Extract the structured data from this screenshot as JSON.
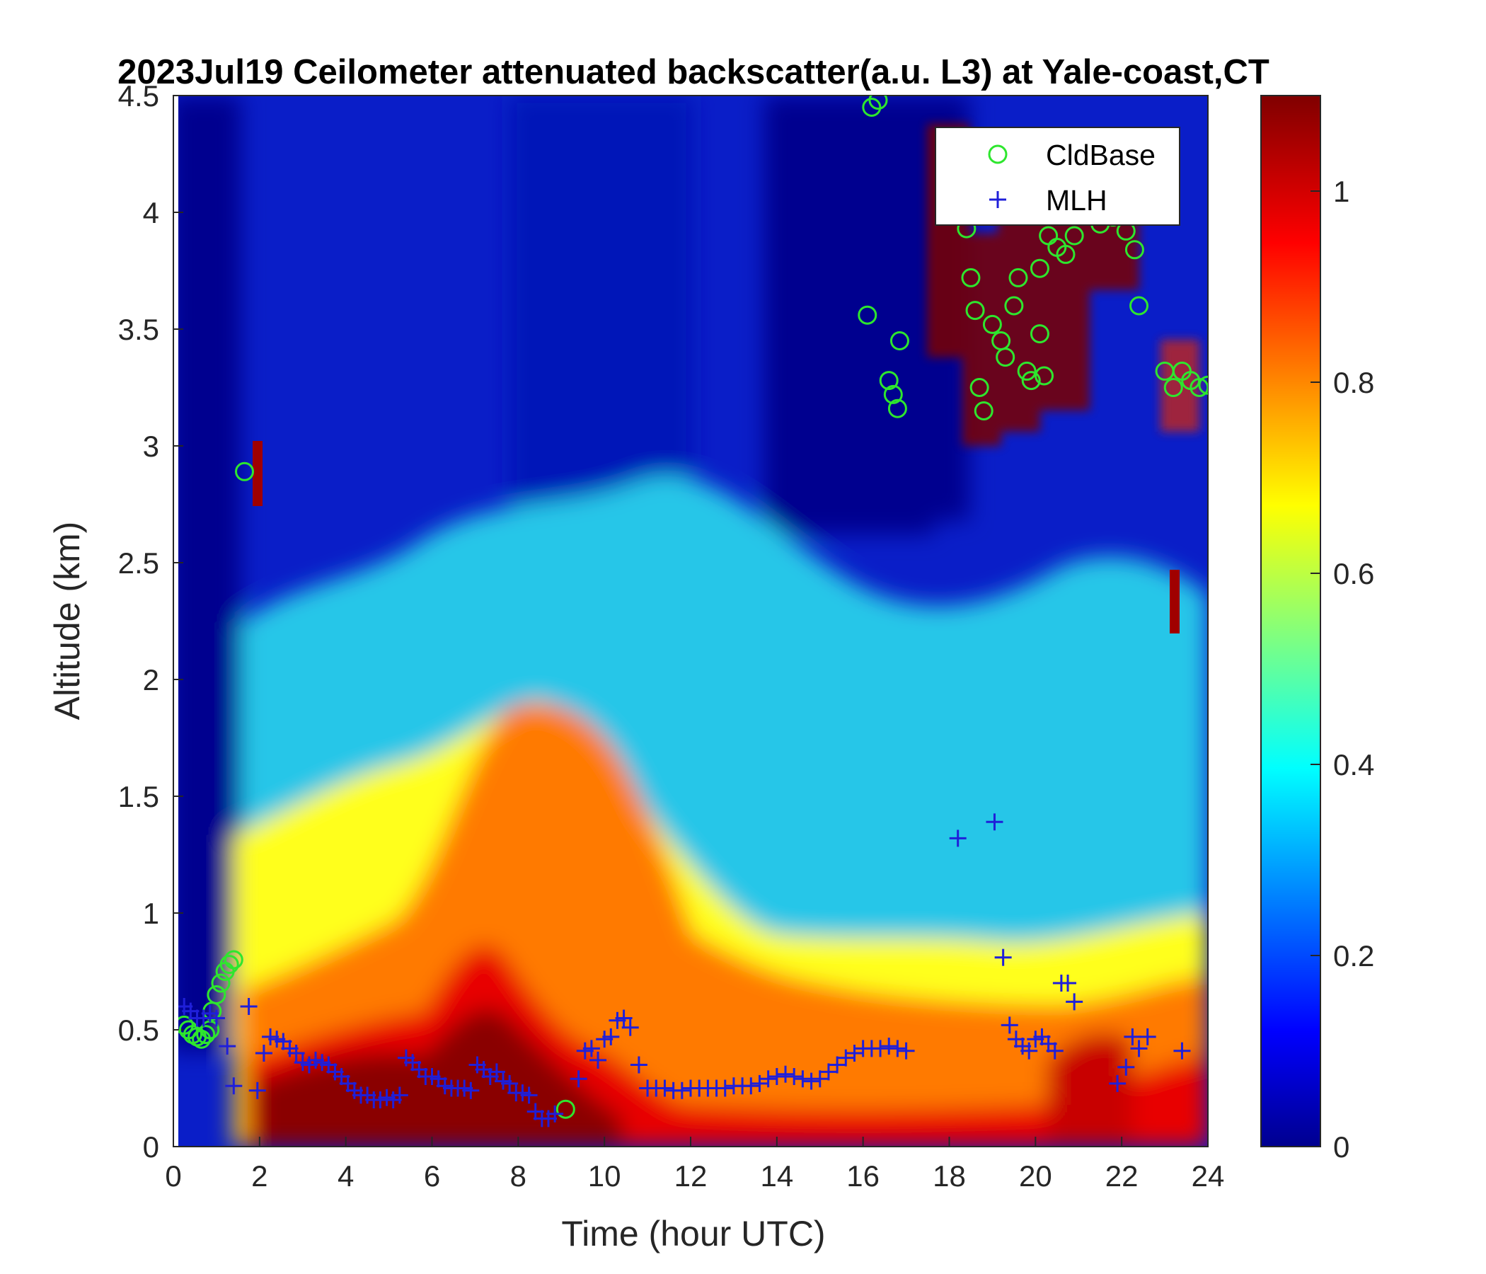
{
  "chart_data": {
    "type": "heatmap",
    "title": "2023Jul19 Ceilometer attenuated backscatter(a.u. L3) at Yale-coast,CT",
    "xlabel": "Time (hour UTC)",
    "ylabel": "Altitude (km)",
    "xlim": [
      0,
      24
    ],
    "ylim": [
      0,
      4.5
    ],
    "x_ticks": [
      "0",
      "2",
      "4",
      "6",
      "8",
      "10",
      "12",
      "14",
      "16",
      "18",
      "20",
      "22",
      "24"
    ],
    "y_ticks": [
      "0",
      "0.5",
      "1",
      "1.5",
      "2",
      "2.5",
      "3",
      "3.5",
      "4",
      "4.5"
    ],
    "colorbar": {
      "range": [
        0,
        1.1
      ],
      "ticks": [
        "0",
        "0.2",
        "0.4",
        "0.6",
        "0.8",
        "1"
      ],
      "colormap": "jet"
    },
    "legend": {
      "position": "top-right",
      "entries": [
        {
          "label": "CldBase",
          "marker": "circle",
          "color": "#2ee62e"
        },
        {
          "label": "MLH",
          "marker": "plus",
          "color": "#1f1fd9"
        }
      ]
    },
    "series": [
      {
        "name": "CldBase",
        "points": [
          [
            0.25,
            0.52
          ],
          [
            0.35,
            0.5
          ],
          [
            0.45,
            0.48
          ],
          [
            0.55,
            0.47
          ],
          [
            0.65,
            0.46
          ],
          [
            0.75,
            0.48
          ],
          [
            0.85,
            0.5
          ],
          [
            0.9,
            0.58
          ],
          [
            1.0,
            0.65
          ],
          [
            1.1,
            0.7
          ],
          [
            1.2,
            0.75
          ],
          [
            1.3,
            0.78
          ],
          [
            1.4,
            0.8
          ],
          [
            1.65,
            2.89
          ],
          [
            9.1,
            0.16
          ],
          [
            16.2,
            4.45
          ],
          [
            16.35,
            4.48
          ],
          [
            16.1,
            3.56
          ],
          [
            16.6,
            3.28
          ],
          [
            16.7,
            3.22
          ],
          [
            16.8,
            3.16
          ],
          [
            16.85,
            3.45
          ],
          [
            18.4,
            3.93
          ],
          [
            18.5,
            3.72
          ],
          [
            18.6,
            3.58
          ],
          [
            18.7,
            3.25
          ],
          [
            18.8,
            3.15
          ],
          [
            19.0,
            3.52
          ],
          [
            19.2,
            3.45
          ],
          [
            19.3,
            3.38
          ],
          [
            19.5,
            3.6
          ],
          [
            19.6,
            3.72
          ],
          [
            19.8,
            3.32
          ],
          [
            19.9,
            3.28
          ],
          [
            20.1,
            3.48
          ],
          [
            20.2,
            3.3
          ],
          [
            20.1,
            3.76
          ],
          [
            20.3,
            3.9
          ],
          [
            20.5,
            3.85
          ],
          [
            20.7,
            3.82
          ],
          [
            20.9,
            3.9
          ],
          [
            21.5,
            3.95
          ],
          [
            21.8,
            3.98
          ],
          [
            22.1,
            3.92
          ],
          [
            22.3,
            3.84
          ],
          [
            22.4,
            3.6
          ],
          [
            23.0,
            3.32
          ],
          [
            23.2,
            3.25
          ],
          [
            23.4,
            3.32
          ],
          [
            23.6,
            3.28
          ],
          [
            23.8,
            3.25
          ],
          [
            24.0,
            3.26
          ]
        ]
      },
      {
        "name": "MLH",
        "points": [
          [
            0.25,
            0.6
          ],
          [
            0.4,
            0.58
          ],
          [
            0.55,
            0.55
          ],
          [
            0.7,
            0.55
          ],
          [
            0.85,
            0.57
          ],
          [
            1.0,
            0.55
          ],
          [
            1.25,
            0.43
          ],
          [
            1.4,
            0.26
          ],
          [
            1.75,
            0.6
          ],
          [
            1.95,
            0.24
          ],
          [
            2.1,
            0.4
          ],
          [
            2.25,
            0.47
          ],
          [
            2.4,
            0.46
          ],
          [
            2.55,
            0.45
          ],
          [
            2.7,
            0.42
          ],
          [
            2.85,
            0.4
          ],
          [
            3.0,
            0.36
          ],
          [
            3.15,
            0.35
          ],
          [
            3.3,
            0.37
          ],
          [
            3.45,
            0.36
          ],
          [
            3.6,
            0.35
          ],
          [
            3.75,
            0.32
          ],
          [
            3.9,
            0.3
          ],
          [
            4.05,
            0.27
          ],
          [
            4.2,
            0.24
          ],
          [
            4.35,
            0.22
          ],
          [
            4.5,
            0.22
          ],
          [
            4.65,
            0.2
          ],
          [
            4.8,
            0.2
          ],
          [
            4.95,
            0.21
          ],
          [
            5.1,
            0.2
          ],
          [
            5.25,
            0.22
          ],
          [
            5.4,
            0.38
          ],
          [
            5.55,
            0.36
          ],
          [
            5.7,
            0.33
          ],
          [
            5.85,
            0.3
          ],
          [
            6.0,
            0.3
          ],
          [
            6.15,
            0.29
          ],
          [
            6.3,
            0.26
          ],
          [
            6.45,
            0.25
          ],
          [
            6.6,
            0.25
          ],
          [
            6.75,
            0.25
          ],
          [
            6.9,
            0.24
          ],
          [
            7.05,
            0.35
          ],
          [
            7.2,
            0.33
          ],
          [
            7.35,
            0.3
          ],
          [
            7.5,
            0.32
          ],
          [
            7.65,
            0.28
          ],
          [
            7.8,
            0.27
          ],
          [
            7.95,
            0.23
          ],
          [
            8.1,
            0.23
          ],
          [
            8.25,
            0.22
          ],
          [
            8.4,
            0.15
          ],
          [
            8.55,
            0.12
          ],
          [
            8.7,
            0.12
          ],
          [
            8.85,
            0.14
          ],
          [
            9.4,
            0.29
          ],
          [
            9.55,
            0.41
          ],
          [
            9.7,
            0.42
          ],
          [
            9.85,
            0.37
          ],
          [
            10.0,
            0.46
          ],
          [
            10.15,
            0.47
          ],
          [
            10.3,
            0.54
          ],
          [
            10.45,
            0.55
          ],
          [
            10.6,
            0.51
          ],
          [
            10.8,
            0.35
          ],
          [
            11.0,
            0.25
          ],
          [
            11.2,
            0.25
          ],
          [
            11.4,
            0.25
          ],
          [
            11.6,
            0.24
          ],
          [
            11.8,
            0.24
          ],
          [
            12.0,
            0.25
          ],
          [
            12.2,
            0.25
          ],
          [
            12.4,
            0.25
          ],
          [
            12.6,
            0.25
          ],
          [
            12.8,
            0.25
          ],
          [
            13.0,
            0.26
          ],
          [
            13.2,
            0.26
          ],
          [
            13.4,
            0.26
          ],
          [
            13.6,
            0.27
          ],
          [
            13.8,
            0.29
          ],
          [
            14.0,
            0.3
          ],
          [
            14.2,
            0.31
          ],
          [
            14.4,
            0.3
          ],
          [
            14.6,
            0.29
          ],
          [
            14.8,
            0.28
          ],
          [
            15.0,
            0.29
          ],
          [
            15.2,
            0.32
          ],
          [
            15.4,
            0.35
          ],
          [
            15.6,
            0.38
          ],
          [
            15.8,
            0.4
          ],
          [
            16.0,
            0.42
          ],
          [
            16.2,
            0.42
          ],
          [
            16.4,
            0.42
          ],
          [
            16.6,
            0.43
          ],
          [
            16.8,
            0.42
          ],
          [
            17.0,
            0.41
          ],
          [
            18.2,
            1.32
          ],
          [
            19.05,
            1.39
          ],
          [
            19.25,
            0.81
          ],
          [
            19.4,
            0.52
          ],
          [
            19.55,
            0.46
          ],
          [
            19.7,
            0.43
          ],
          [
            19.85,
            0.41
          ],
          [
            20.0,
            0.46
          ],
          [
            20.15,
            0.47
          ],
          [
            20.3,
            0.44
          ],
          [
            20.45,
            0.41
          ],
          [
            20.6,
            0.7
          ],
          [
            20.75,
            0.7
          ],
          [
            20.9,
            0.62
          ],
          [
            21.9,
            0.27
          ],
          [
            22.1,
            0.34
          ],
          [
            22.25,
            0.47
          ],
          [
            22.4,
            0.42
          ],
          [
            22.6,
            0.47
          ],
          [
            23.4,
            0.41
          ]
        ]
      }
    ]
  }
}
